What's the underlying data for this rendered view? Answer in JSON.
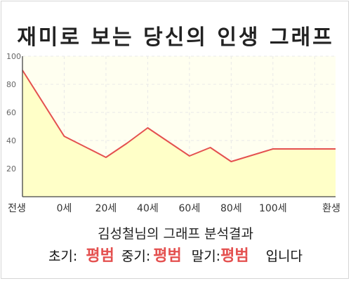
{
  "title": "재미로 보는 당신의 인생 그래프",
  "chart_data": {
    "type": "area",
    "x_labels": [
      "전생",
      "0세",
      "20세",
      "40세",
      "60세",
      "80세",
      "100세",
      "환생"
    ],
    "y_ticks": [
      "100",
      "80",
      "60",
      "40",
      "20"
    ],
    "ylim": [
      0,
      100
    ],
    "x_domain": [
      0,
      7.5
    ],
    "points": [
      {
        "x": 0,
        "y": 90
      },
      {
        "x": 1,
        "y": 43
      },
      {
        "x": 2,
        "y": 28
      },
      {
        "x": 2.5,
        "y": 38
      },
      {
        "x": 3,
        "y": 49
      },
      {
        "x": 4,
        "y": 29
      },
      {
        "x": 4.5,
        "y": 35
      },
      {
        "x": 5,
        "y": 25
      },
      {
        "x": 6,
        "y": 34
      },
      {
        "x": 7.5,
        "y": 34
      }
    ],
    "colors": {
      "line": "#e4504f",
      "fill": "#ffffc8",
      "plot_bg": "#fffff0",
      "grid": "#e8e8e8"
    }
  },
  "caption": {
    "name_line": "김성철님의 그래프 분석결과",
    "early_label": "초기:",
    "early_value": "평범",
    "middle_label": "중기:",
    "middle_value": "평범",
    "late_label": "말기:",
    "late_value": "평범",
    "suffix": "입니다"
  }
}
